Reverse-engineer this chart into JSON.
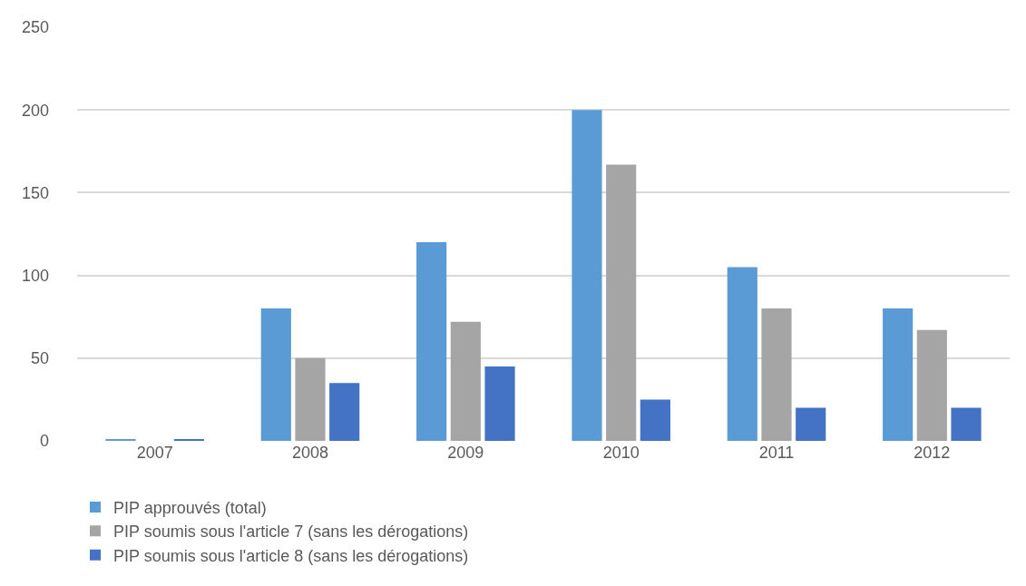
{
  "chart_data": {
    "type": "bar",
    "categories": [
      "2007",
      "2008",
      "2009",
      "2010",
      "2011",
      "2012"
    ],
    "series": [
      {
        "name": "PIP approuvés (total)",
        "color": "#5b9bd5",
        "values": [
          1,
          80,
          120,
          200,
          105,
          80
        ]
      },
      {
        "name": "PIP soumis sous l'article 7 (sans les dérogations)",
        "color": "#a5a5a5",
        "values": [
          0,
          50,
          72,
          167,
          80,
          67
        ]
      },
      {
        "name": "PIP soumis sous l'article 8 (sans les dérogations)",
        "color": "#4472c4",
        "values": [
          1,
          35,
          45,
          25,
          20,
          20
        ]
      }
    ],
    "ylim": [
      0,
      250
    ],
    "yticks": [
      0,
      50,
      100,
      150,
      200,
      250
    ],
    "grid": "y",
    "legend": "bottom"
  }
}
